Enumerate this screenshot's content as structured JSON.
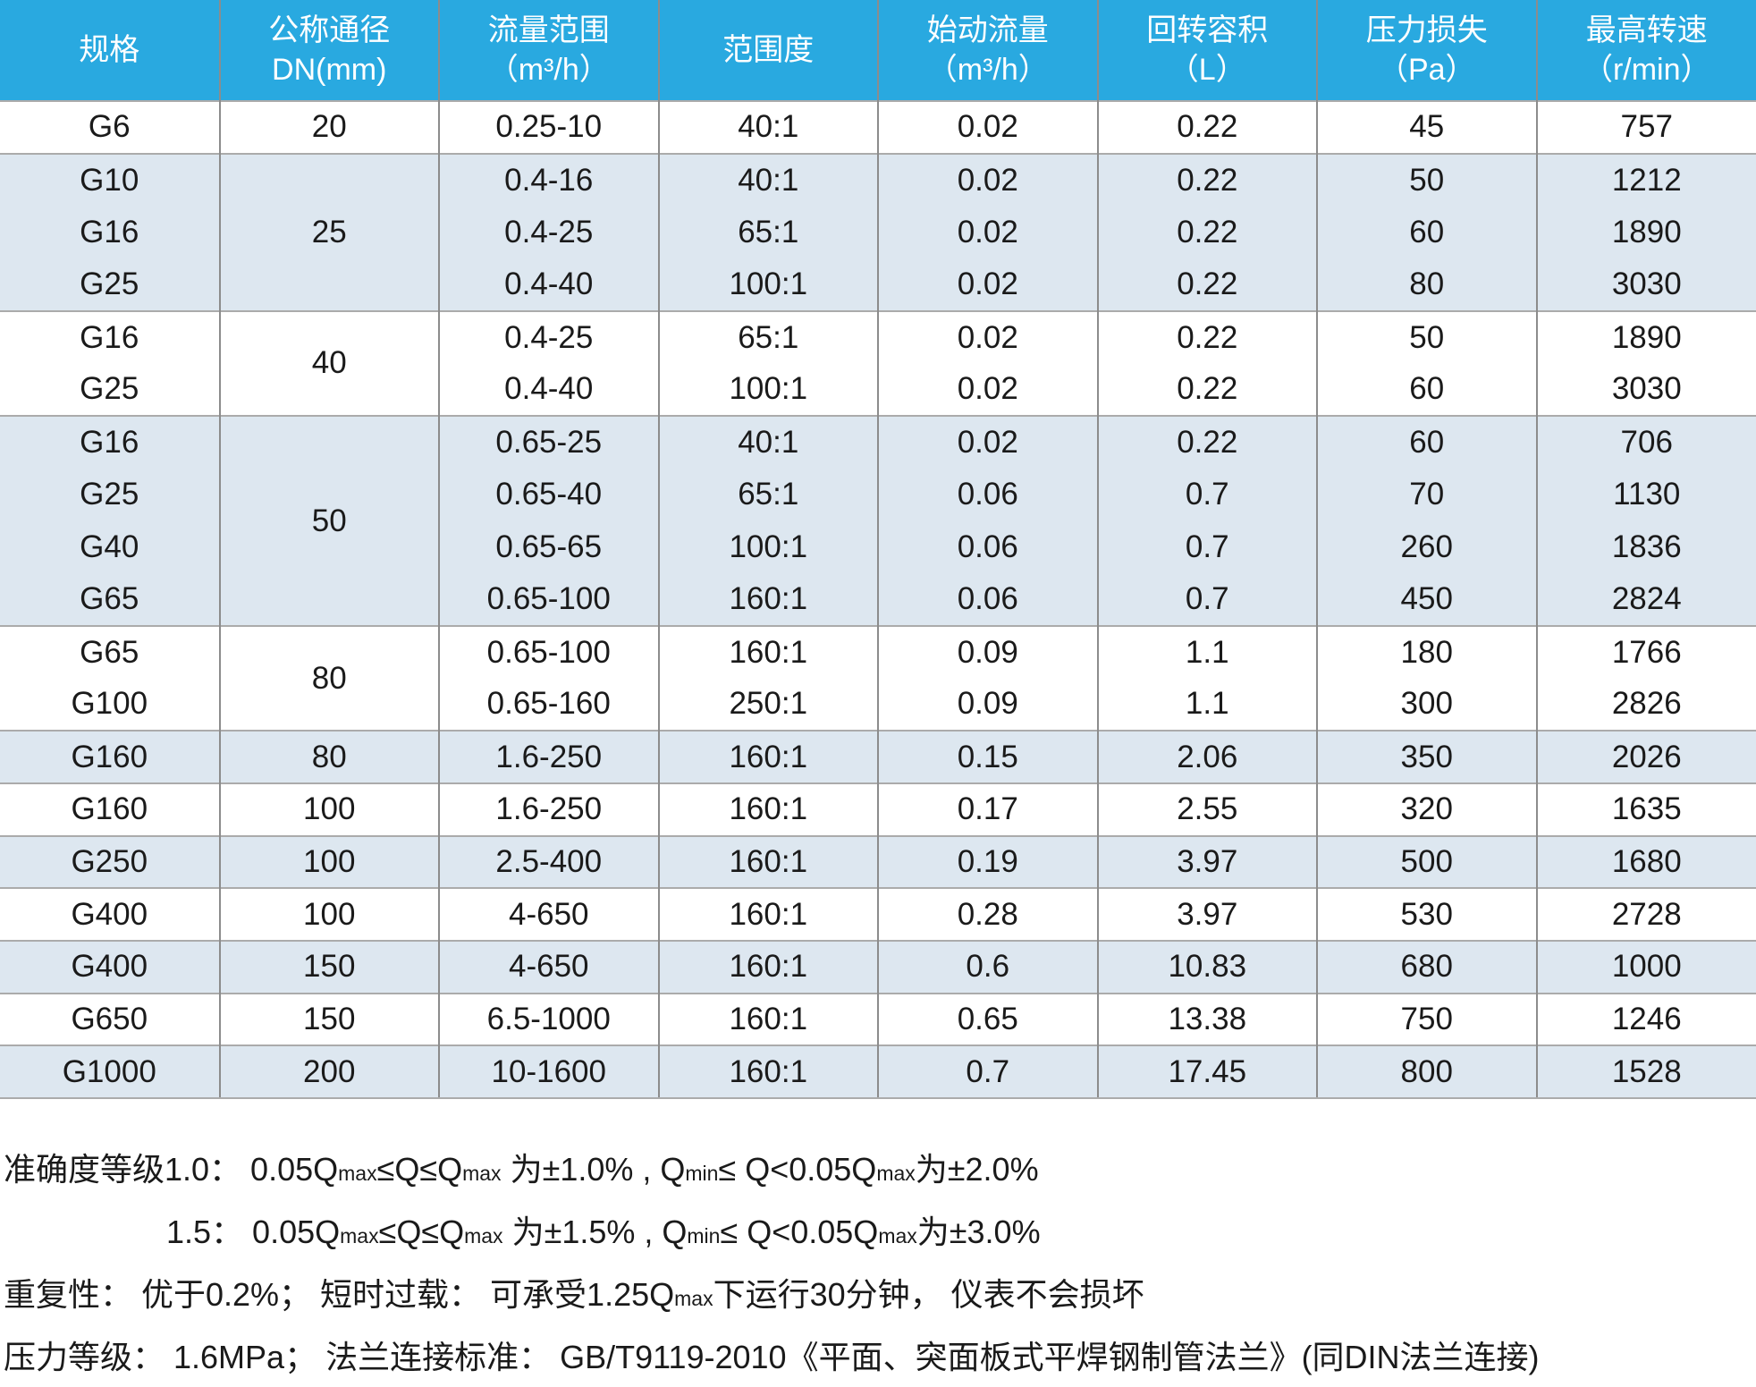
{
  "colors": {
    "header_bg": "#29A9E0",
    "alt_bg": "#DDE7F0",
    "text": "#1A1A1A",
    "divider": "#8C8C8C",
    "group_border": "#ABABAB",
    "header_text": "#FFFFFF"
  },
  "chart_data": {
    "type": "table",
    "title": "",
    "columns": [
      {
        "key": "spec",
        "label": "规格",
        "unit": ""
      },
      {
        "key": "dn",
        "label": "公称通径",
        "unit": "DN(mm)"
      },
      {
        "key": "flow",
        "label": "流量范围",
        "unit": "（m³/h）"
      },
      {
        "key": "range",
        "label": "范围度",
        "unit": ""
      },
      {
        "key": "start",
        "label": "始动流量",
        "unit": "（m³/h）"
      },
      {
        "key": "volume",
        "label": "回转容积",
        "unit": "（L）"
      },
      {
        "key": "loss",
        "label": "压力损失",
        "unit": "（Pa）"
      },
      {
        "key": "speed",
        "label": "最高转速",
        "unit": "（r/min）"
      }
    ],
    "groups": [
      {
        "bg": "white",
        "dn": "20",
        "rows": [
          {
            "spec": "G6",
            "flow": "0.25-10",
            "range": "40:1",
            "start": "0.02",
            "volume": "0.22",
            "loss": "45",
            "speed": "757"
          }
        ]
      },
      {
        "bg": "alt",
        "dn": "25",
        "rows": [
          {
            "spec": "G10",
            "flow": "0.4-16",
            "range": "40:1",
            "start": "0.02",
            "volume": "0.22",
            "loss": "50",
            "speed": "1212"
          },
          {
            "spec": "G16",
            "flow": "0.4-25",
            "range": "65:1",
            "start": "0.02",
            "volume": "0.22",
            "loss": "60",
            "speed": "1890"
          },
          {
            "spec": "G25",
            "flow": "0.4-40",
            "range": "100:1",
            "start": "0.02",
            "volume": "0.22",
            "loss": "80",
            "speed": "3030"
          }
        ]
      },
      {
        "bg": "white",
        "dn": "40",
        "rows": [
          {
            "spec": "G16",
            "flow": "0.4-25",
            "range": "65:1",
            "start": "0.02",
            "volume": "0.22",
            "loss": "50",
            "speed": "1890"
          },
          {
            "spec": "G25",
            "flow": "0.4-40",
            "range": "100:1",
            "start": "0.02",
            "volume": "0.22",
            "loss": "60",
            "speed": "3030"
          }
        ]
      },
      {
        "bg": "alt",
        "dn": "50",
        "rows": [
          {
            "spec": "G16",
            "flow": "0.65-25",
            "range": "40:1",
            "start": "0.02",
            "volume": "0.22",
            "loss": "60",
            "speed": "706"
          },
          {
            "spec": "G25",
            "flow": "0.65-40",
            "range": "65:1",
            "start": "0.06",
            "volume": "0.7",
            "loss": "70",
            "speed": "1130"
          },
          {
            "spec": "G40",
            "flow": "0.65-65",
            "range": "100:1",
            "start": "0.06",
            "volume": "0.7",
            "loss": "260",
            "speed": "1836"
          },
          {
            "spec": "G65",
            "flow": "0.65-100",
            "range": "160:1",
            "start": "0.06",
            "volume": "0.7",
            "loss": "450",
            "speed": "2824"
          }
        ]
      },
      {
        "bg": "white",
        "dn": "80",
        "rows": [
          {
            "spec": "G65",
            "flow": "0.65-100",
            "range": "160:1",
            "start": "0.09",
            "volume": "1.1",
            "loss": "180",
            "speed": "1766"
          },
          {
            "spec": "G100",
            "flow": "0.65-160",
            "range": "250:1",
            "start": "0.09",
            "volume": "1.1",
            "loss": "300",
            "speed": "2826"
          }
        ]
      },
      {
        "bg": "alt",
        "dn": "80",
        "rows": [
          {
            "spec": "G160",
            "flow": "1.6-250",
            "range": "160:1",
            "start": "0.15",
            "volume": "2.06",
            "loss": "350",
            "speed": "2026"
          }
        ]
      },
      {
        "bg": "white",
        "dn": "100",
        "rows": [
          {
            "spec": "G160",
            "flow": "1.6-250",
            "range": "160:1",
            "start": "0.17",
            "volume": "2.55",
            "loss": "320",
            "speed": "1635"
          }
        ]
      },
      {
        "bg": "alt",
        "dn": "100",
        "rows": [
          {
            "spec": "G250",
            "flow": "2.5-400",
            "range": "160:1",
            "start": "0.19",
            "volume": "3.97",
            "loss": "500",
            "speed": "1680"
          }
        ]
      },
      {
        "bg": "white",
        "dn": "100",
        "rows": [
          {
            "spec": "G400",
            "flow": "4-650",
            "range": "160:1",
            "start": "0.28",
            "volume": "3.97",
            "loss": "530",
            "speed": "2728"
          }
        ]
      },
      {
        "bg": "alt",
        "dn": "150",
        "rows": [
          {
            "spec": "G400",
            "flow": "4-650",
            "range": "160:1",
            "start": "0.6",
            "volume": "10.83",
            "loss": "680",
            "speed": "1000"
          }
        ]
      },
      {
        "bg": "white",
        "dn": "150",
        "rows": [
          {
            "spec": "G650",
            "flow": "6.5-1000",
            "range": "160:1",
            "start": "0.65",
            "volume": "13.38",
            "loss": "750",
            "speed": "1246"
          }
        ]
      },
      {
        "bg": "alt",
        "dn": "200",
        "rows": [
          {
            "spec": "G1000",
            "flow": "10-1600",
            "range": "160:1",
            "start": "0.7",
            "volume": "17.45",
            "loss": "800",
            "speed": "1528"
          }
        ]
      }
    ],
    "notes": [
      {
        "indent": 0,
        "segments": [
          {
            "v": "准确度等级1.0： 0.05Q",
            "sub": false
          },
          {
            "v": "max",
            "sub": true
          },
          {
            "v": "≤Q≤Q",
            "sub": false
          },
          {
            "v": "max",
            "sub": true
          },
          {
            "v": " 为±1.0% , Q",
            "sub": false
          },
          {
            "v": "min",
            "sub": true
          },
          {
            "v": "≤ Q<0.05Q",
            "sub": false
          },
          {
            "v": "max",
            "sub": true
          },
          {
            "v": "为±2.0%",
            "sub": false
          }
        ]
      },
      {
        "indent": 182,
        "segments": [
          {
            "v": "1.5： 0.05Q",
            "sub": false
          },
          {
            "v": "max",
            "sub": true
          },
          {
            "v": "≤Q≤Q",
            "sub": false
          },
          {
            "v": "max",
            "sub": true
          },
          {
            "v": " 为±1.5% , Q",
            "sub": false
          },
          {
            "v": "min",
            "sub": true
          },
          {
            "v": "≤ Q<0.05Q",
            "sub": false
          },
          {
            "v": "max",
            "sub": true
          },
          {
            "v": "为±3.0%",
            "sub": false
          }
        ]
      },
      {
        "indent": 0,
        "segments": [
          {
            "v": "重复性： 优于0.2%； 短时过载： 可承受1.25Q",
            "sub": false
          },
          {
            "v": "max",
            "sub": true
          },
          {
            "v": "下运行30分钟， 仪表不会损坏",
            "sub": false
          }
        ]
      },
      {
        "indent": 0,
        "segments": [
          {
            "v": "压力等级： 1.6MPa； 法兰连接标准： GB/T9119-2010《平面、突面板式平焊钢制管法兰》(同DIN法兰连接)",
            "sub": false
          }
        ]
      }
    ]
  }
}
